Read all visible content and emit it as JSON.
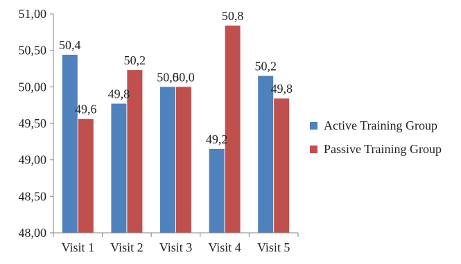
{
  "chart_data": {
    "type": "bar",
    "categories": [
      "Visit 1",
      "Visit 2",
      "Visit 3",
      "Visit 4",
      "Visit 5"
    ],
    "series": [
      {
        "name": "Active Training Group",
        "values": [
          50.44,
          49.77,
          50.0,
          49.15,
          50.15
        ],
        "labels": [
          "50,4",
          "49,8",
          "50,0",
          "49,2",
          "50,2"
        ],
        "color": "#4F81BD"
      },
      {
        "name": "Passive Training Group",
        "values": [
          49.56,
          50.23,
          50.0,
          50.84,
          49.84
        ],
        "labels": [
          "49,6",
          "50,2",
          "50,0",
          "50,8",
          "49,8"
        ],
        "color": "#C0504D"
      }
    ],
    "ylim": [
      48.0,
      51.0
    ],
    "yticks": [
      48.0,
      48.5,
      49.0,
      49.5,
      50.0,
      50.5,
      51.0
    ],
    "ytick_labels": [
      "48,00",
      "48,50",
      "49,00",
      "49,50",
      "50,00",
      "50,50",
      "51,00"
    ],
    "grid": false,
    "legend": "right"
  }
}
